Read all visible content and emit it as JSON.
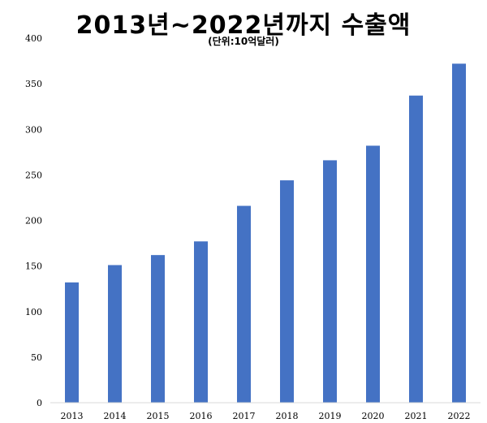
{
  "title": "2013년~2022년까지 수출액",
  "subtitle": "(단위:10억달러)",
  "colors": {
    "bar": "#4472C4",
    "axis": "#d9d9d9"
  },
  "chart_data": {
    "type": "bar",
    "title": "2013년~2022년까지 수출액",
    "subtitle": "(단위:10억달러)",
    "categories": [
      "2013",
      "2014",
      "2015",
      "2016",
      "2017",
      "2018",
      "2019",
      "2020",
      "2021",
      "2022"
    ],
    "values": [
      132,
      151,
      162,
      177,
      216,
      244,
      266,
      282,
      337,
      372
    ],
    "ylim": [
      0,
      400
    ],
    "yticks": [
      "0",
      "50",
      "100",
      "150",
      "200",
      "250",
      "300",
      "350",
      "400"
    ],
    "grid": false,
    "legend": "none"
  }
}
